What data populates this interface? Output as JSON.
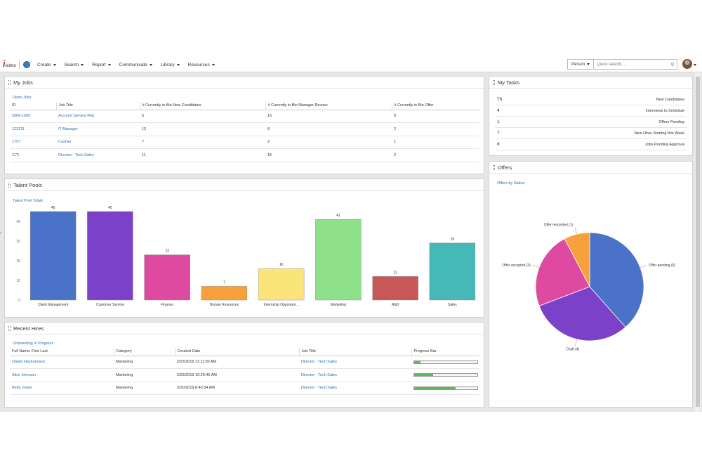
{
  "nav": {
    "logo": "icims",
    "menu": [
      "Create",
      "Search",
      "Report",
      "Communicate",
      "Library",
      "Resources"
    ],
    "search_scope": "Person",
    "search_placeholder": "Quick search..."
  },
  "my_jobs": {
    "title": "My Jobs",
    "sublink": "Open Jobs",
    "columns": [
      "ID",
      "Job Title",
      "# Currently in Bin New Candidates",
      "# Currently in Bin Manager Review",
      "# Currently in Bin Offer"
    ],
    "rows": [
      [
        "2006-1000",
        "Account Service Rep",
        "5",
        "15",
        "0"
      ],
      [
        "123211",
        "IT Manager",
        "13",
        "8",
        "2"
      ],
      [
        "1757",
        "Cashier",
        "7",
        "2",
        "1"
      ],
      [
        "C75",
        "Director - Tech Sales",
        "11",
        "15",
        "2"
      ]
    ]
  },
  "my_tasks": {
    "title": "My Tasks",
    "rows": [
      {
        "count": "76",
        "label": "New Candidates"
      },
      {
        "count": "4",
        "label": "Interviews to Schedule"
      },
      {
        "count": "1",
        "label": "Offers Pending"
      },
      {
        "count": "7",
        "label": "New Hires Starting this Week"
      },
      {
        "count": "8",
        "label": "Jobs Pending Approval"
      }
    ]
  },
  "talent_pools": {
    "title": "Talent Pools",
    "sublink": "Talent Pool Totals",
    "chart_data": {
      "type": "bar",
      "categories": [
        "Client Management",
        "Customer Service",
        "Finance",
        "Human Resources",
        "Internship Opportuni...",
        "Marketing",
        "R&D",
        "Sales"
      ],
      "values": [
        45,
        45,
        23,
        7,
        16,
        41,
        12,
        29
      ],
      "colors": [
        "#4a72c8",
        "#7b42c9",
        "#de4aa0",
        "#f7a03c",
        "#fbe57a",
        "#8ee08a",
        "#c95757",
        "#47b8b8"
      ],
      "ylim": [
        0,
        50
      ],
      "yticks": [
        0,
        10,
        20,
        30,
        40
      ],
      "grid": false,
      "legend": "none"
    }
  },
  "offers": {
    "title": "Offers",
    "sublink": "Offers by Status",
    "chart_data": {
      "type": "pie",
      "labels": [
        "Offer pending (5)",
        "Draft (4)",
        "Offer accepted (3)",
        "Offer rescinded (1)"
      ],
      "values": [
        5,
        4,
        3,
        1
      ],
      "colors": [
        "#4a72c8",
        "#7b42c9",
        "#de4aa0",
        "#f7a03c"
      ],
      "legend": "none"
    }
  },
  "recent_hires": {
    "title": "Recent Hires",
    "sublink": "Onboarding in Progress",
    "columns": [
      "Full Name: First Last",
      "Category",
      "Created Date",
      "Job Title",
      "Progress Bar"
    ],
    "rows": [
      {
        "name": "Daniel Hackensack",
        "category": "Marketing",
        "created": "2/23/2019 11:11:50 AM",
        "job": "Director - Tech Sales",
        "progress": 0.1
      },
      {
        "name": "Alice Johnson",
        "category": "Marketing",
        "created": "2/23/2019 10:20:45 AM",
        "job": "Director - Tech Sales",
        "progress": 0.3
      },
      {
        "name": "Betty Jones",
        "category": "Marketing",
        "created": "2/20/2019 8:40:34 AM",
        "job": "Director - Tech Sales",
        "progress": 0.65
      }
    ]
  }
}
